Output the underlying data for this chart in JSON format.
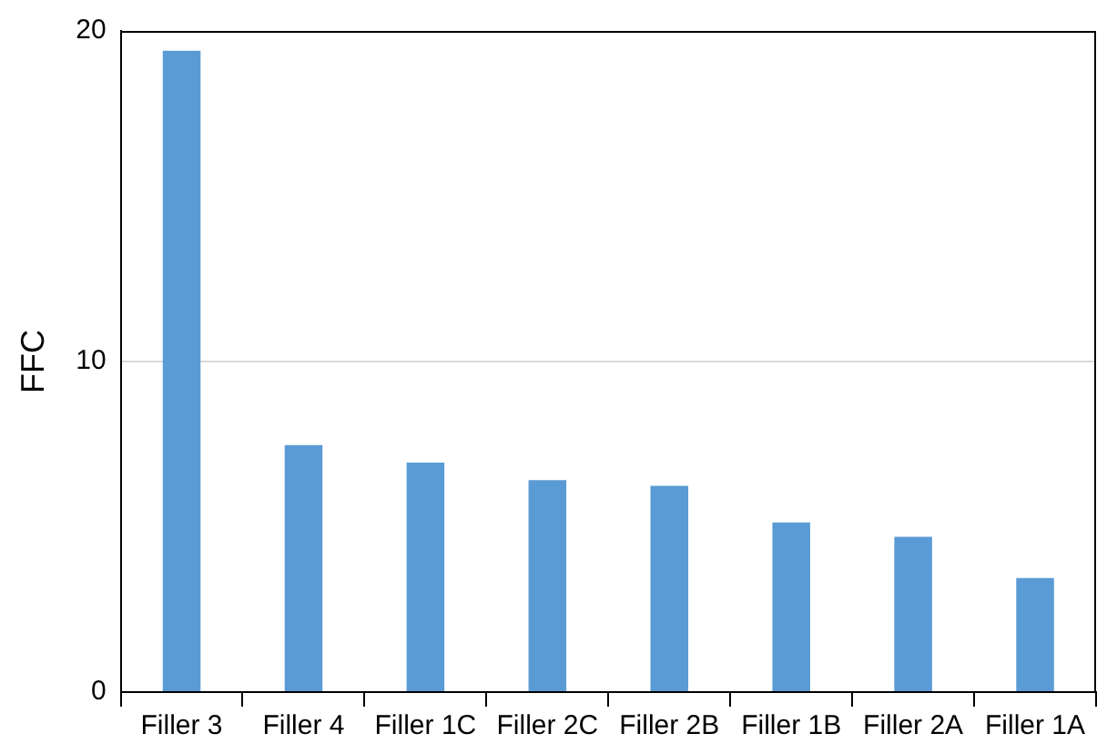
{
  "chart_data": {
    "type": "bar",
    "ylabel": "FFC",
    "categories": [
      "Filler 3",
      "Filler 4",
      "Filler 1C",
      "Filler 2C",
      "Filler 2B",
      "Filler 1B",
      "Filler 2A",
      "Filler 1A"
    ],
    "values": [
      19.4,
      7.47,
      6.94,
      6.41,
      6.24,
      5.13,
      4.7,
      3.45
    ],
    "color": "#5b9bd5",
    "ylim": [
      0,
      20
    ],
    "yticks": [
      0,
      10,
      20
    ],
    "grid": "y",
    "legend": false
  }
}
